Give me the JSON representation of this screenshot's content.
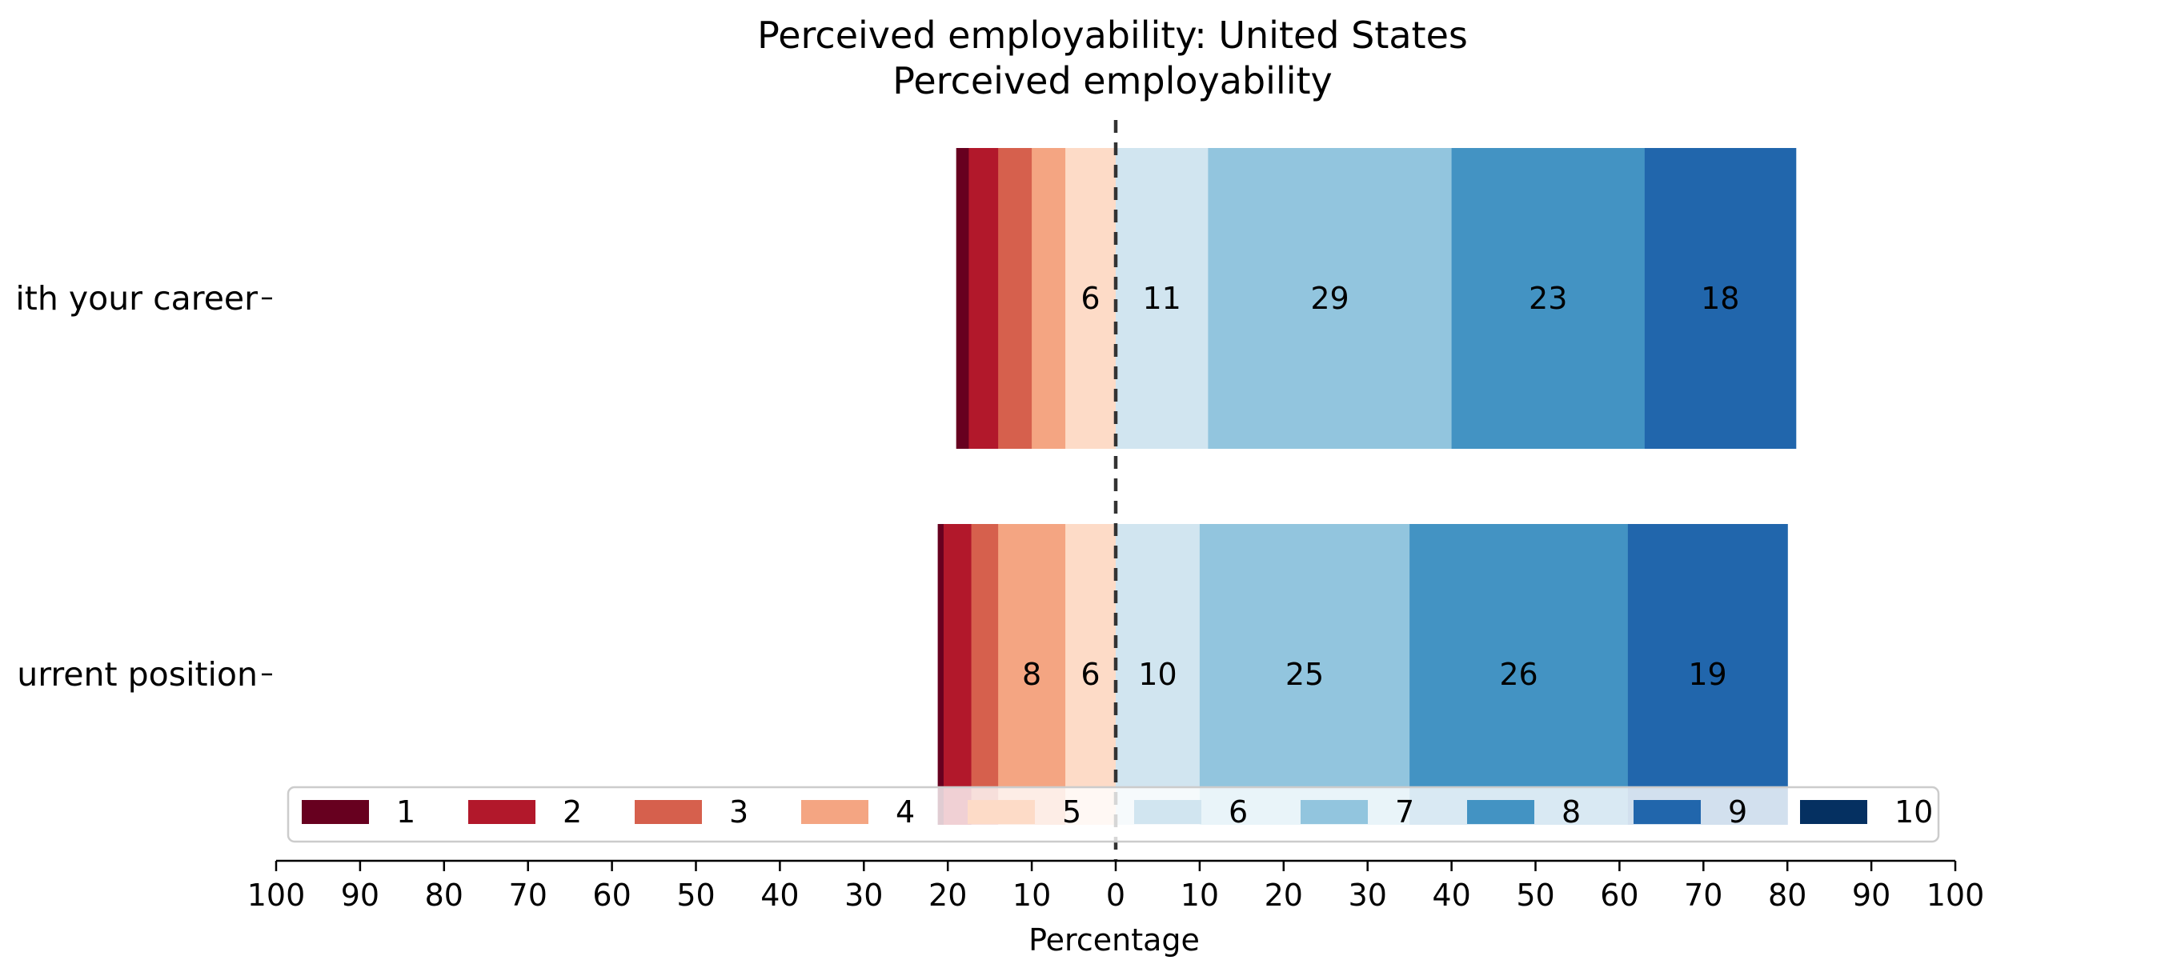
{
  "chart_data": {
    "type": "bar",
    "orientation": "horizontal-diverging",
    "title": "Perceived employability: United States",
    "subtitle": "Perceived employability",
    "xlabel": "Percentage",
    "xlim": [
      -100,
      100
    ],
    "x_ticks": [
      -100,
      -90,
      -80,
      -70,
      -60,
      -50,
      -40,
      -30,
      -20,
      -10,
      0,
      10,
      20,
      30,
      40,
      50,
      60,
      70,
      80,
      90,
      100
    ],
    "x_tick_labels": [
      "100",
      "90",
      "80",
      "70",
      "60",
      "50",
      "40",
      "30",
      "20",
      "10",
      "0",
      "10",
      "20",
      "30",
      "40",
      "50",
      "60",
      "70",
      "80",
      "90",
      "100"
    ],
    "diverging_split": "0",
    "categories": [
      "ith your career",
      "urrent position"
    ],
    "series": [
      {
        "name": "1",
        "color": "#67001f",
        "values": [
          1.5,
          0.7
        ]
      },
      {
        "name": "2",
        "color": "#b2182b",
        "values": [
          3.5,
          3.3
        ]
      },
      {
        "name": "3",
        "color": "#d6604d",
        "values": [
          4.0,
          3.2
        ]
      },
      {
        "name": "4",
        "color": "#f4a582",
        "values": [
          4.0,
          8
        ]
      },
      {
        "name": "5",
        "color": "#fddbc7",
        "values": [
          6,
          6
        ]
      },
      {
        "name": "6",
        "color": "#d1e5f0",
        "values": [
          11,
          10
        ]
      },
      {
        "name": "7",
        "color": "#92c5de",
        "values": [
          29,
          25
        ]
      },
      {
        "name": "8",
        "color": "#4393c3",
        "values": [
          23,
          26
        ]
      },
      {
        "name": "9",
        "color": "#2166ac",
        "values": [
          18,
          19
        ]
      },
      {
        "name": "10",
        "color": "#053061",
        "values": [
          0,
          0
        ]
      }
    ],
    "segment_labels": [
      [
        "",
        "",
        "",
        "",
        "6",
        "11",
        "29",
        "23",
        "18",
        ""
      ],
      [
        "",
        "",
        "",
        "8",
        "6",
        "10",
        "25",
        "26",
        "19",
        ""
      ]
    ],
    "legend": {
      "placement": "bottom-center",
      "entries": [
        "1",
        "2",
        "3",
        "4",
        "5",
        "6",
        "7",
        "8",
        "9",
        "10"
      ]
    },
    "grid": false,
    "center_line": "dashed"
  }
}
